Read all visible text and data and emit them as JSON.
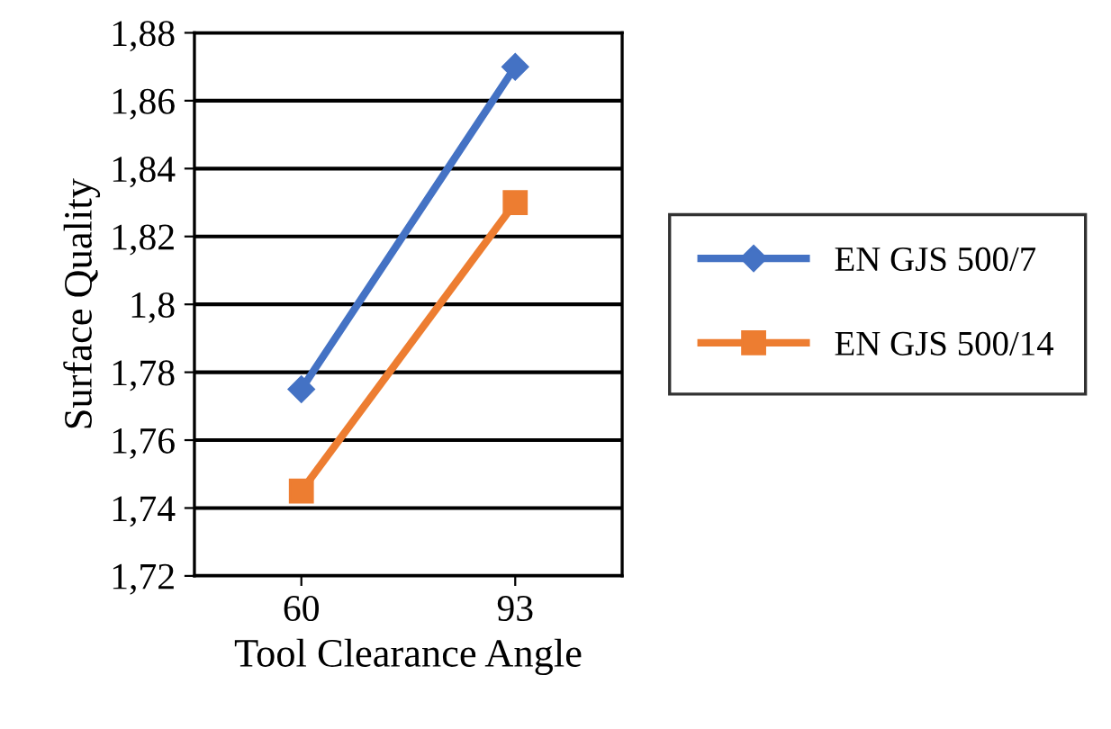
{
  "chart_data": {
    "type": "line",
    "xlabel": "Tool Clearance Angle",
    "ylabel": "Surface Quality",
    "categories": [
      "60",
      "93"
    ],
    "series": [
      {
        "name": "EN GJS 500/7",
        "color": "#4472c4",
        "marker": "diamond",
        "values": [
          1.775,
          1.87
        ]
      },
      {
        "name": "EN GJS 500/14",
        "color": "#ed7d31",
        "marker": "square",
        "values": [
          1.745,
          1.83
        ]
      }
    ],
    "ylim": [
      1.72,
      1.88
    ],
    "yticks": [
      {
        "value": 1.72,
        "label": "1,72"
      },
      {
        "value": 1.74,
        "label": "1,74"
      },
      {
        "value": 1.76,
        "label": "1,76"
      },
      {
        "value": 1.78,
        "label": "1,78"
      },
      {
        "value": 1.8,
        "label": "1,8"
      },
      {
        "value": 1.82,
        "label": "1,82"
      },
      {
        "value": 1.84,
        "label": "1,84"
      },
      {
        "value": 1.86,
        "label": "1,86"
      },
      {
        "value": 1.88,
        "label": "1,88"
      }
    ],
    "grid": "y",
    "legend": "right",
    "line_style": "solid"
  }
}
